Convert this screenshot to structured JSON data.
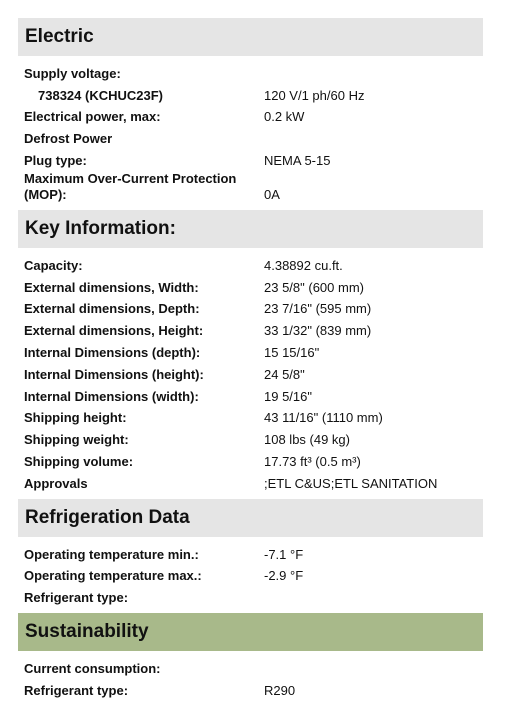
{
  "sections": [
    {
      "title": "Electric",
      "rows": [
        {
          "label": "Supply voltage:"
        },
        {
          "label": "738324 (KCHUC23F)",
          "value": "120 V/1 ph/60 Hz"
        },
        {
          "label": "Electrical power, max:",
          "value": "0.2 kW"
        },
        {
          "label": "Defrost Power"
        },
        {
          "label": "Plug type:",
          "value": "NEMA 5-15"
        },
        {
          "label": "Maximum Over-Current Protection (MOP):",
          "value": "0A"
        }
      ]
    },
    {
      "title": "Key Information:",
      "rows": [
        {
          "label": "Capacity:",
          "value": "4.38892 cu.ft."
        },
        {
          "label": "External dimensions, Width:",
          "value": "23 5/8\" (600 mm)"
        },
        {
          "label": "External dimensions, Depth:",
          "value": "23 7/16\" (595 mm)"
        },
        {
          "label": "External dimensions, Height:",
          "value": "33 1/32\" (839 mm)"
        },
        {
          "label": "Internal Dimensions (depth):",
          "value": "15 15/16\""
        },
        {
          "label": "Internal Dimensions (height):",
          "value": "24 5/8\""
        },
        {
          "label": "Internal Dimensions (width):",
          "value": "19 5/16\""
        },
        {
          "label": "Shipping height:",
          "value": "43 11/16\" (1110 mm)"
        },
        {
          "label": "Shipping weight:",
          "value": "108 lbs (49 kg)"
        },
        {
          "label": "Shipping volume:",
          "value": "17.73 ft³ (0.5 m³)"
        },
        {
          "label": "Approvals",
          "value": ";ETL C&US;ETL SANITATION"
        }
      ]
    },
    {
      "title": "Refrigeration Data",
      "rows": [
        {
          "label": "Operating temperature min.:",
          "value": "-7.1 °F"
        },
        {
          "label": "Operating temperature max.:",
          "value": "-2.9 °F"
        },
        {
          "label": "Refrigerant type:"
        }
      ]
    },
    {
      "title": "Sustainability",
      "rows": [
        {
          "label": "Current consumption:"
        },
        {
          "label": "Refrigerant type:",
          "value": "R290"
        }
      ]
    }
  ]
}
